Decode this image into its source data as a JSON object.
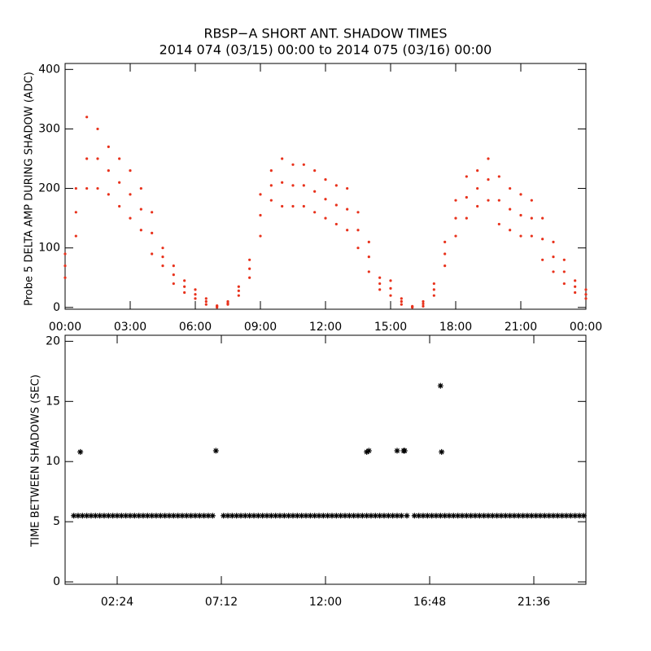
{
  "chart_data": [
    {
      "type": "scatter",
      "title": "RBSP−A SHORT ANT. SHADOW TIMES",
      "subtitle": "2014 074 (03/15) 00:00 to 2014 075 (03/16) 00:00",
      "y_label": "Probe 5 DELTA AMP DURING SHADOW (ADC)",
      "color": "#e8321c",
      "xlim": [
        0,
        24
      ],
      "ylim": [
        -3,
        410
      ],
      "xticks": [
        {
          "value": 0,
          "label": "00:00"
        },
        {
          "value": 3,
          "label": "03:00"
        },
        {
          "value": 6,
          "label": "06:00"
        },
        {
          "value": 9,
          "label": "09:00"
        },
        {
          "value": 12,
          "label": "12:00"
        },
        {
          "value": 15,
          "label": "15:00"
        },
        {
          "value": 18,
          "label": "18:00"
        },
        {
          "value": 21,
          "label": "21:00"
        },
        {
          "value": 24,
          "label": "00:00"
        }
      ],
      "yticks": [
        0,
        100,
        200,
        300,
        400
      ],
      "x": [
        0,
        0,
        0,
        0.5,
        0.5,
        0.5,
        1,
        1,
        1,
        1.5,
        1.5,
        1.5,
        2,
        2,
        2,
        2.5,
        2.5,
        2.5,
        3,
        3,
        3,
        3.5,
        3.5,
        3.5,
        4,
        4,
        4,
        4.5,
        4.5,
        4.5,
        5,
        5,
        5,
        5.5,
        5.5,
        5.5,
        6,
        6,
        6,
        6.5,
        6.5,
        6.5,
        7,
        7,
        7,
        7.5,
        7.5,
        7.5,
        8,
        8,
        8,
        8.5,
        8.5,
        8.5,
        9,
        9,
        9,
        9.5,
        9.5,
        9.5,
        10,
        10,
        10,
        10.5,
        10.5,
        10.5,
        11,
        11,
        11,
        11.5,
        11.5,
        11.5,
        12,
        12,
        12,
        12.5,
        12.5,
        12.5,
        13,
        13,
        13,
        13.5,
        13.5,
        13.5,
        14,
        14,
        14,
        14.5,
        14.5,
        14.5,
        15,
        15,
        15,
        15.5,
        15.5,
        15.5,
        16,
        16,
        16,
        16.5,
        16.5,
        16.5,
        17,
        17,
        17,
        17.5,
        17.5,
        17.5,
        18,
        18,
        18,
        18.5,
        18.5,
        18.5,
        19,
        19,
        19,
        19.5,
        19.5,
        19.5,
        20,
        20,
        20,
        20.5,
        20.5,
        20.5,
        21,
        21,
        21,
        21.5,
        21.5,
        21.5,
        22,
        22,
        22,
        22.5,
        22.5,
        22.5,
        23,
        23,
        23,
        23.5,
        23.5,
        23.5,
        24,
        24,
        24
      ],
      "values": [
        50,
        70,
        90,
        120,
        160,
        200,
        200,
        250,
        320,
        200,
        250,
        300,
        190,
        230,
        270,
        170,
        210,
        250,
        150,
        190,
        230,
        130,
        165,
        200,
        90,
        125,
        160,
        70,
        85,
        100,
        40,
        55,
        70,
        25,
        35,
        45,
        15,
        22,
        30,
        5,
        10,
        15,
        0,
        2,
        3,
        5,
        7,
        10,
        20,
        28,
        35,
        50,
        65,
        80,
        120,
        155,
        190,
        180,
        205,
        230,
        170,
        210,
        250,
        170,
        205,
        240,
        170,
        205,
        240,
        160,
        195,
        230,
        150,
        182,
        215,
        140,
        172,
        205,
        130,
        165,
        200,
        100,
        130,
        160,
        60,
        85,
        110,
        30,
        40,
        50,
        20,
        32,
        45,
        5,
        10,
        15,
        0,
        1,
        2,
        2,
        6,
        10,
        20,
        30,
        40,
        70,
        90,
        110,
        120,
        150,
        180,
        150,
        185,
        220,
        170,
        200,
        230,
        180,
        215,
        250,
        140,
        180,
        220,
        130,
        165,
        200,
        120,
        155,
        190,
        120,
        150,
        180,
        80,
        115,
        150,
        60,
        85,
        110,
        40,
        60,
        80,
        25,
        35,
        45,
        15,
        22,
        30
      ]
    },
    {
      "type": "scatter",
      "y_label": "TIME BETWEEN SHADOWS (SEC)",
      "color": "#000000",
      "marker": "asterisk",
      "xlim": [
        0,
        24
      ],
      "ylim": [
        -0.2,
        20.5
      ],
      "xticks": [
        {
          "value": 2.4,
          "label": "02:24"
        },
        {
          "value": 7.2,
          "label": "07:12"
        },
        {
          "value": 12,
          "label": "12:00"
        },
        {
          "value": 16.8,
          "label": "16:48"
        },
        {
          "value": 21.6,
          "label": "21:36"
        }
      ],
      "yticks": [
        0,
        5,
        10,
        15,
        20
      ],
      "x": [
        0.4,
        0.6,
        0.8,
        1,
        1.2,
        1.4,
        1.6,
        1.8,
        2,
        2.2,
        2.4,
        2.6,
        2.8,
        3,
        3.2,
        3.4,
        3.6,
        3.8,
        4,
        4.2,
        4.4,
        4.6,
        4.8,
        5,
        5.2,
        5.4,
        5.6,
        5.8,
        6,
        6.2,
        6.4,
        6.6,
        6.8,
        7.3,
        7.5,
        7.7,
        7.9,
        8.1,
        8.3,
        8.5,
        8.7,
        8.9,
        9.1,
        9.3,
        9.5,
        9.7,
        9.9,
        10.1,
        10.3,
        10.5,
        10.7,
        10.9,
        11.1,
        11.3,
        11.5,
        11.7,
        11.9,
        12.1,
        12.3,
        12.5,
        12.7,
        12.9,
        13.1,
        13.3,
        13.5,
        13.7,
        13.9,
        14.1,
        14.3,
        14.5,
        14.7,
        14.9,
        15.1,
        15.3,
        15.5,
        15.75,
        16.1,
        16.3,
        16.5,
        16.7,
        16.9,
        17.1,
        17.3,
        17.5,
        17.7,
        17.9,
        18.1,
        18.3,
        18.5,
        18.7,
        18.9,
        19.1,
        19.3,
        19.5,
        19.7,
        19.9,
        20.1,
        20.3,
        20.5,
        20.7,
        20.9,
        21.1,
        21.3,
        21.5,
        21.7,
        21.9,
        22.1,
        22.3,
        22.5,
        22.7,
        22.9,
        23.1,
        23.3,
        23.5,
        23.7,
        23.9,
        0.7,
        6.95,
        13.9,
        14.0,
        15.3,
        15.6,
        15.65,
        17.3,
        17.35
      ],
      "values": [
        5.5,
        5.5,
        5.5,
        5.5,
        5.5,
        5.5,
        5.5,
        5.5,
        5.5,
        5.5,
        5.5,
        5.5,
        5.5,
        5.5,
        5.5,
        5.5,
        5.5,
        5.5,
        5.5,
        5.5,
        5.5,
        5.5,
        5.5,
        5.5,
        5.5,
        5.5,
        5.5,
        5.5,
        5.5,
        5.5,
        5.5,
        5.5,
        5.5,
        5.5,
        5.5,
        5.5,
        5.5,
        5.5,
        5.5,
        5.5,
        5.5,
        5.5,
        5.5,
        5.5,
        5.5,
        5.5,
        5.5,
        5.5,
        5.5,
        5.5,
        5.5,
        5.5,
        5.5,
        5.5,
        5.5,
        5.5,
        5.5,
        5.5,
        5.5,
        5.5,
        5.5,
        5.5,
        5.5,
        5.5,
        5.5,
        5.5,
        5.5,
        5.5,
        5.5,
        5.5,
        5.5,
        5.5,
        5.5,
        5.5,
        5.5,
        5.5,
        5.5,
        5.5,
        5.5,
        5.5,
        5.5,
        5.5,
        5.5,
        5.5,
        5.5,
        5.5,
        5.5,
        5.5,
        5.5,
        5.5,
        5.5,
        5.5,
        5.5,
        5.5,
        5.5,
        5.5,
        5.5,
        5.5,
        5.5,
        5.5,
        5.5,
        5.5,
        5.5,
        5.5,
        5.5,
        5.5,
        5.5,
        5.5,
        5.5,
        5.5,
        5.5,
        5.5,
        5.5,
        5.5,
        5.5,
        5.5,
        10.8,
        10.9,
        10.8,
        10.9,
        10.9,
        10.9,
        10.9,
        16.3,
        10.8
      ]
    }
  ]
}
